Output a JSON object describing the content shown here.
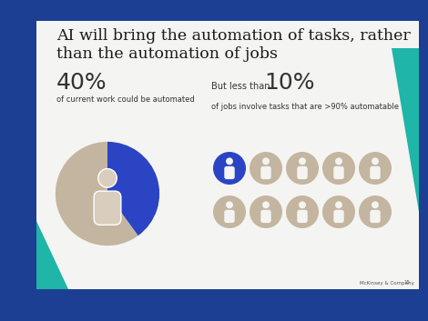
{
  "title": "AI will bring the automation of tasks, rather than the automation of jobs",
  "footer": "McKinsey & Company",
  "page": "15",
  "chart_data": [
    {
      "type": "pie",
      "title": "40%",
      "subtitle": "of current work could be automated",
      "values": [
        40,
        60
      ],
      "colors": [
        "#2a44c4",
        "#c4b5a0"
      ]
    },
    {
      "type": "pictogram",
      "prefix": "But less than",
      "title": "10%",
      "subtitle": "of jobs involve tasks that are >90% automatable",
      "values": [
        1,
        9
      ],
      "colors": [
        "#2a44c4",
        "#c4b5a0"
      ]
    }
  ]
}
